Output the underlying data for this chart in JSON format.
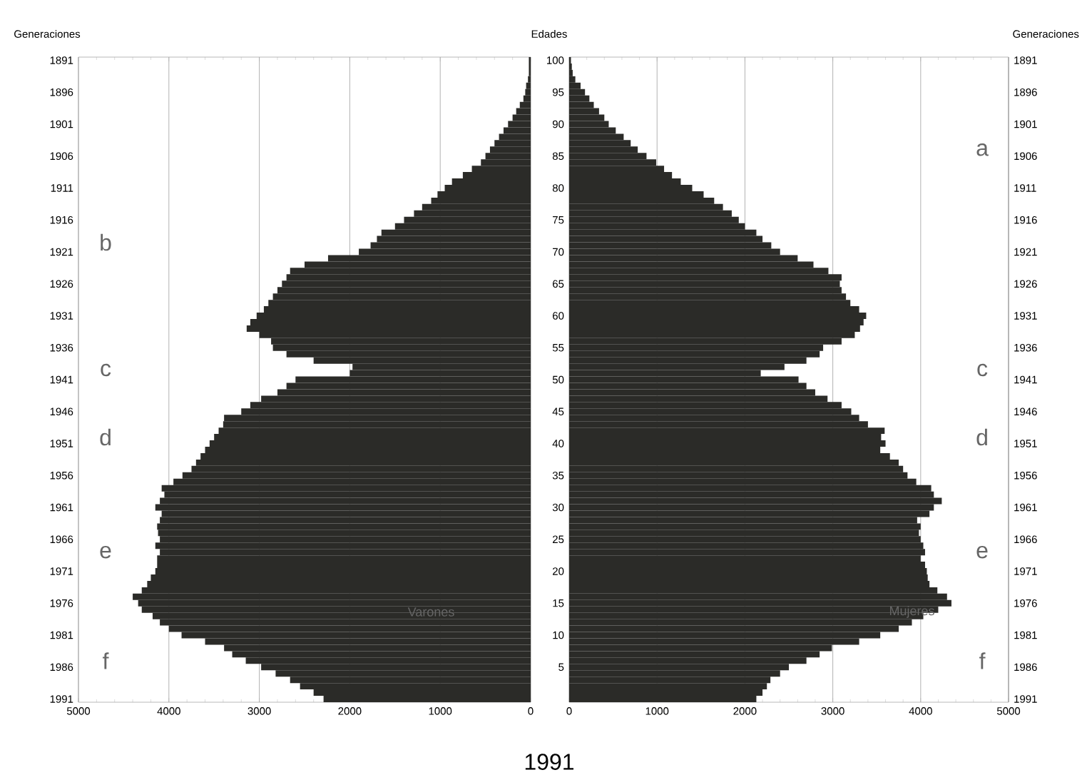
{
  "chart_data": [
    {
      "type": "bar",
      "orientation": "horizontal",
      "title": "1991",
      "ylabel": "Generaciones",
      "categories": [
        "1891",
        null,
        null,
        null,
        null,
        "1896",
        null,
        null,
        null,
        null,
        "1901",
        null,
        null,
        null,
        null,
        "1906",
        null,
        null,
        null,
        null,
        "1911",
        null,
        null,
        null,
        null,
        "1916",
        null,
        null,
        null,
        null,
        "1921",
        null,
        null,
        null,
        null,
        "1926",
        null,
        null,
        null,
        null,
        "1931",
        null,
        null,
        null,
        null,
        "1936",
        null,
        null,
        null,
        null,
        "1941",
        null,
        null,
        null,
        null,
        "1946",
        null,
        null,
        null,
        null,
        "1951",
        null,
        null,
        null,
        null,
        "1956",
        null,
        null,
        null,
        null,
        "1961",
        null,
        null,
        null,
        null,
        "1966",
        null,
        null,
        null,
        null,
        "1971",
        null,
        null,
        null,
        null,
        "1976",
        null,
        null,
        null,
        null,
        "1981",
        null,
        null,
        null,
        null,
        "1986",
        null,
        null,
        null,
        null,
        "1991"
      ],
      "series": [
        {
          "name": "Varones",
          "color": "#2b2b28",
          "values": [
            20,
            20,
            20,
            30,
            50,
            60,
            80,
            120,
            160,
            200,
            250,
            300,
            350,
            400,
            450,
            500,
            550,
            650,
            750,
            870,
            950,
            1030,
            1100,
            1200,
            1290,
            1400,
            1500,
            1650,
            1700,
            1770,
            1900,
            2240,
            2500,
            2660,
            2700,
            2750,
            2800,
            2850,
            2900,
            2950,
            3030,
            3100,
            3140,
            3000,
            2870,
            2850,
            2700,
            2400,
            1970,
            2000,
            2600,
            2700,
            2800,
            2980,
            3100,
            3200,
            3390,
            3400,
            3450,
            3500,
            3550,
            3600,
            3650,
            3700,
            3750,
            3850,
            3950,
            4080,
            4050,
            4100,
            4150,
            4080,
            4100,
            4130,
            4120,
            4100,
            4150,
            4100,
            4130,
            4130,
            4150,
            4200,
            4240,
            4300,
            4400,
            4340,
            4300,
            4180,
            4100,
            4000,
            3860,
            3600,
            3390,
            3300,
            3150,
            2980,
            2820,
            2660,
            2550,
            2400,
            2290
          ]
        }
      ],
      "xlim": [
        5000,
        0
      ],
      "xticks": [
        5000,
        4000,
        3000,
        2000,
        1000,
        0
      ],
      "grid": "x",
      "annotations": [
        "b",
        "c",
        "d",
        "e",
        "f"
      ]
    },
    {
      "type": "bar",
      "orientation": "horizontal",
      "ylabel": "Edades",
      "y2label": "Generaciones",
      "categories": [
        "100",
        null,
        null,
        null,
        null,
        "95",
        null,
        null,
        null,
        null,
        "90",
        null,
        null,
        null,
        null,
        "85",
        null,
        null,
        null,
        null,
        "80",
        null,
        null,
        null,
        null,
        "75",
        null,
        null,
        null,
        null,
        "70",
        null,
        null,
        null,
        null,
        "65",
        null,
        null,
        null,
        null,
        "60",
        null,
        null,
        null,
        null,
        "55",
        null,
        null,
        null,
        null,
        "50",
        null,
        null,
        null,
        null,
        "45",
        null,
        null,
        null,
        null,
        "40",
        null,
        null,
        null,
        null,
        "35",
        null,
        null,
        null,
        null,
        "30",
        null,
        null,
        null,
        null,
        "25",
        null,
        null,
        null,
        null,
        "20",
        null,
        null,
        null,
        null,
        "15",
        null,
        null,
        null,
        null,
        "10",
        null,
        null,
        null,
        null,
        "5",
        null,
        null,
        null,
        null,
        null
      ],
      "y2_categories": [
        "1891",
        null,
        null,
        null,
        null,
        "1896",
        null,
        null,
        null,
        null,
        "1901",
        null,
        null,
        null,
        null,
        "1906",
        null,
        null,
        null,
        null,
        "1911",
        null,
        null,
        null,
        null,
        "1916",
        null,
        null,
        null,
        null,
        "1921",
        null,
        null,
        null,
        null,
        "1926",
        null,
        null,
        null,
        null,
        "1931",
        null,
        null,
        null,
        null,
        "1936",
        null,
        null,
        null,
        null,
        "1941",
        null,
        null,
        null,
        null,
        "1946",
        null,
        null,
        null,
        null,
        "1951",
        null,
        null,
        null,
        null,
        "1956",
        null,
        null,
        null,
        null,
        "1961",
        null,
        null,
        null,
        null,
        "1966",
        null,
        null,
        null,
        null,
        "1971",
        null,
        null,
        null,
        null,
        "1976",
        null,
        null,
        null,
        null,
        "1981",
        null,
        null,
        null,
        null,
        "1986",
        null,
        null,
        null,
        null,
        "1991"
      ],
      "series": [
        {
          "name": "Mujeres",
          "color": "#2b2b28",
          "values": [
            20,
            30,
            40,
            70,
            130,
            180,
            230,
            280,
            340,
            400,
            450,
            530,
            620,
            700,
            780,
            880,
            990,
            1080,
            1170,
            1270,
            1400,
            1530,
            1650,
            1750,
            1850,
            1930,
            2000,
            2130,
            2200,
            2300,
            2400,
            2600,
            2780,
            2950,
            3100,
            3080,
            3100,
            3150,
            3200,
            3300,
            3380,
            3350,
            3310,
            3250,
            3100,
            2890,
            2850,
            2700,
            2450,
            2180,
            2610,
            2700,
            2800,
            2940,
            3100,
            3210,
            3300,
            3400,
            3590,
            3550,
            3600,
            3540,
            3650,
            3750,
            3800,
            3850,
            3950,
            4120,
            4150,
            4240,
            4150,
            4100,
            3960,
            4000,
            3980,
            4000,
            4030,
            4050,
            4000,
            4050,
            4070,
            4080,
            4100,
            4190,
            4300,
            4350,
            4200,
            4030,
            3900,
            3750,
            3540,
            3300,
            2990,
            2850,
            2700,
            2500,
            2400,
            2290,
            2250,
            2200,
            2130
          ]
        }
      ],
      "xlim": [
        0,
        5000
      ],
      "xticks": [
        0,
        1000,
        2000,
        3000,
        4000,
        5000
      ],
      "grid": "x",
      "annotations": [
        "a",
        "c",
        "d",
        "e",
        "f"
      ]
    }
  ]
}
